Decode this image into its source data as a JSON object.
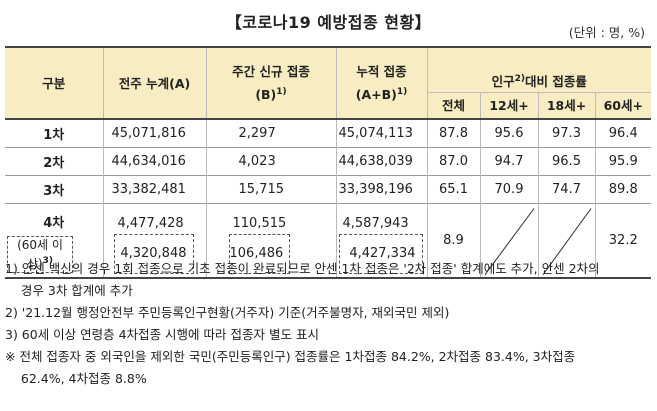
{
  "title": "【코로나19 예방접종 현황】",
  "unit": "(단위 : 명, %)",
  "header": {
    "gubun": "구분",
    "prev_cum": "전주 누계(A)",
    "weekly_new_line1": "주간 신규 접종",
    "weekly_new_line2": "(B)",
    "weekly_new_sup": "1)",
    "cum_line1": "누적 접종",
    "cum_line2": "(A+B)",
    "cum_sup": "1)",
    "pop_rate_pre": "인구",
    "pop_rate_sup": "2)",
    "pop_rate_post": "대비 접종률",
    "sub_total": "전체",
    "sub_12": "12세+",
    "sub_18": "18세+",
    "sub_60": "60세+"
  },
  "rows": [
    {
      "label": "1차",
      "a": "45,071,816",
      "b": "2,297",
      "ab": "45,074,113",
      "total": "87.8",
      "p12": "95.6",
      "p18": "97.3",
      "p60": "96.4"
    },
    {
      "label": "2차",
      "a": "44,634,016",
      "b": "4,023",
      "ab": "44,638,039",
      "total": "87.0",
      "p12": "94.7",
      "p18": "96.5",
      "p60": "95.9"
    },
    {
      "label": "3차",
      "a": "33,382,481",
      "b": "15,715",
      "ab": "33,398,196",
      "total": "65.1",
      "p12": "70.9",
      "p18": "74.7",
      "p60": "89.8"
    }
  ],
  "row4": {
    "label": "4차",
    "a": "4,477,428",
    "b": "110,515",
    "ab": "4,587,943",
    "total": "8.9",
    "p60": "32.2",
    "sub_label_1": "(60세 이",
    "sub_label_2": "상)",
    "sub_label_sup": "3)",
    "sub_a": "4,320,848",
    "sub_b": "106,486",
    "sub_ab": "4,427,334"
  },
  "notes": [
    "1) 안센 백신의 경우 1회 접종으로 기초 접종이 완료되므로 안센 1차 접종은 '2차 접종' 합계에도 추가, 안센 2차의",
    "    경우 3차 합계에 추가",
    "2) '21.12월 행정안전부 주민등록인구현황(거주자) 기준(거주불명자, 재외국민 제외)",
    "3) 60세 이상 연령층 4차접종 시행에 따라 접종자 별도 표시",
    "※ 전체 접종자 중 외국인을 제외한 국민(주민등록인구) 접종률은 1차접종 84.2%, 2차접종 83.4%, 3차접종",
    "    62.4%, 4차접종 8.8%"
  ]
}
